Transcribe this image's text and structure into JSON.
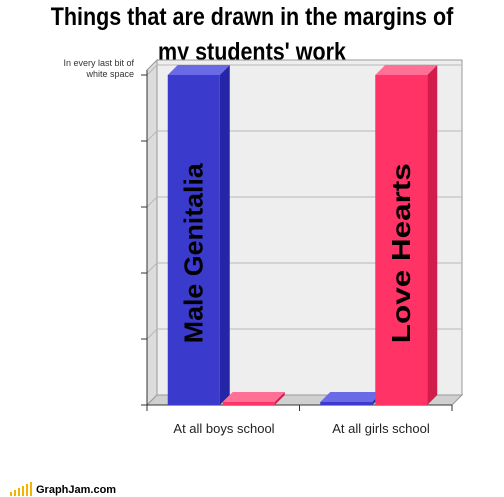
{
  "title": {
    "line1": "Things that are drawn in the margins of",
    "line2": "my students' work"
  },
  "footer": {
    "site": "GraphJam.com"
  },
  "chart_data": {
    "type": "bar",
    "title": "Things that are drawn in the margins of my students' work",
    "categories": [
      "At all boys school",
      "At all girls school"
    ],
    "ylim": [
      0,
      100
    ],
    "ytick_label": "In every last bit of white space",
    "grid": true,
    "series": [
      {
        "name": "Male Genitalia",
        "values": [
          100,
          0
        ],
        "color": "#3a3acc",
        "side_color": "#2525a8",
        "top_color": "#6a6ae6"
      },
      {
        "name": "Love Hearts",
        "values": [
          0,
          100
        ],
        "color": "#ff3366",
        "side_color": "#d11d4c",
        "top_color": "#ff7096"
      }
    ],
    "bar_labels": [
      "Male Genitalia",
      "Love Hearts"
    ]
  }
}
